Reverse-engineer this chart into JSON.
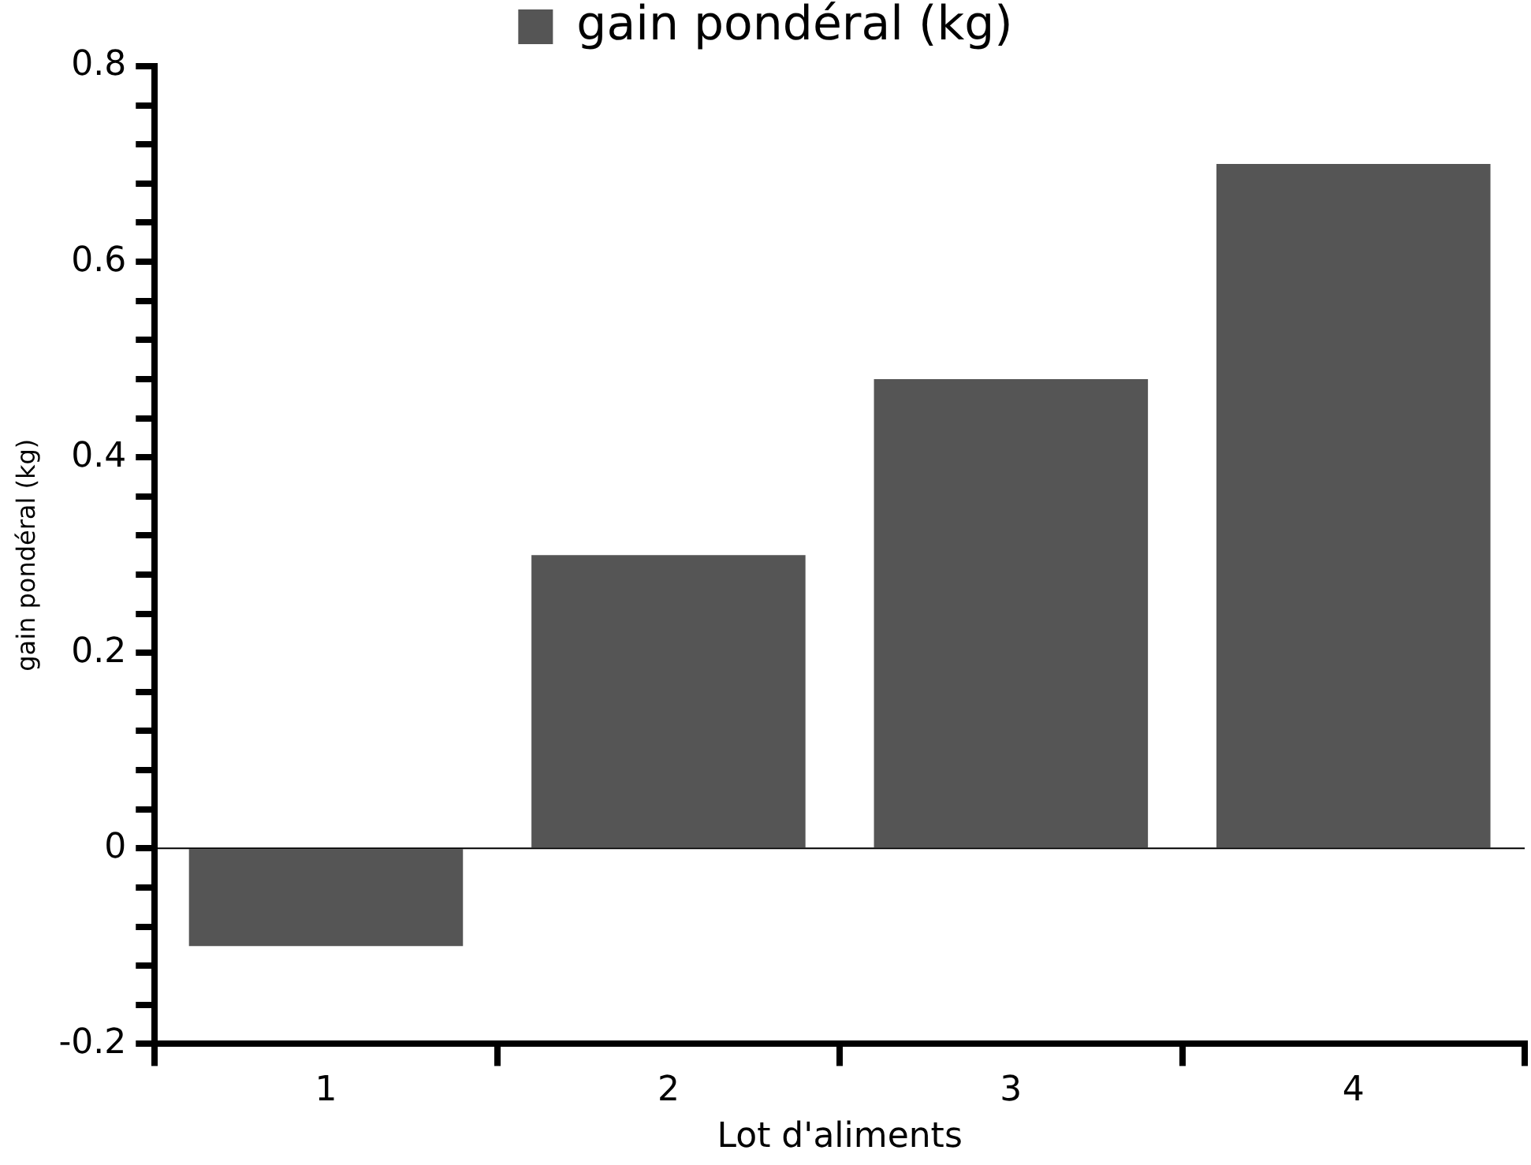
{
  "chart_data": {
    "type": "bar",
    "xlabel": "Lot d'aliments",
    "ylabel": "gain pondéral (kg)",
    "categories": [
      "1",
      "2",
      "3",
      "4"
    ],
    "series": [
      {
        "name": "gain pondéral (kg)",
        "color": "#555555",
        "values": [
          -0.1,
          0.3,
          0.48,
          0.7
        ]
      }
    ],
    "ylim": [
      -0.2,
      0.8
    ],
    "yticks": [
      -0.2,
      {
        "value": -0.16,
        "label": null
      },
      {
        "value": -0.12,
        "label": null
      },
      {
        "value": -0.08,
        "label": null
      },
      {
        "value": -0.04,
        "label": null
      },
      0,
      {
        "value": 0.04,
        "label": null
      },
      {
        "value": 0.08,
        "label": null
      },
      {
        "value": 0.12,
        "label": null
      },
      {
        "value": 0.16,
        "label": null
      },
      0.2,
      {
        "value": 0.24,
        "label": null
      },
      {
        "value": 0.28,
        "label": null
      },
      {
        "value": 0.32,
        "label": null
      },
      {
        "value": 0.36,
        "label": null
      },
      0.4,
      {
        "value": 0.44,
        "label": null
      },
      {
        "value": 0.48,
        "label": null
      },
      {
        "value": 0.52,
        "label": null
      },
      {
        "value": 0.56,
        "label": null
      },
      0.6,
      {
        "value": 0.64,
        "label": null
      },
      {
        "value": 0.68,
        "label": null
      },
      {
        "value": 0.72,
        "label": null
      },
      {
        "value": 0.76,
        "label": null
      },
      0.8
    ],
    "ref_lines": [
      {
        "axis": "y",
        "value": 0,
        "label": null,
        "color": "#000000"
      }
    ],
    "grid": false,
    "legend": "top"
  }
}
